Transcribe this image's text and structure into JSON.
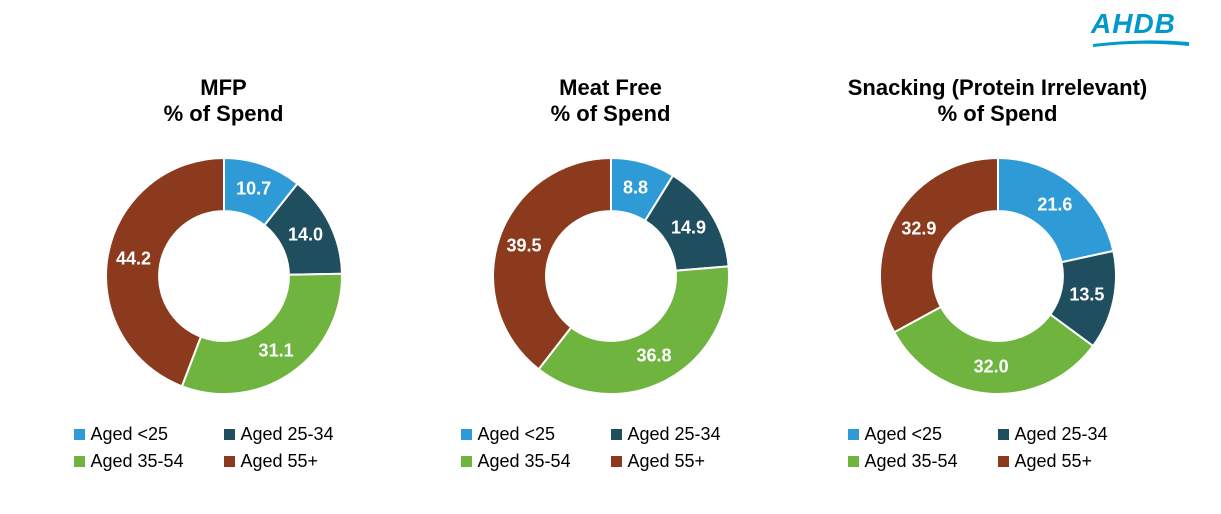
{
  "logo": {
    "text": "AHDB",
    "color": "#0099cc"
  },
  "categories": [
    {
      "key": "lt25",
      "label": "Aged <25",
      "color": "#2e9bd6"
    },
    {
      "key": "25_34",
      "label": "Aged 25-34",
      "color": "#1f4e5f"
    },
    {
      "key": "35_54",
      "label": "Aged 35-54",
      "color": "#6eb43f"
    },
    {
      "key": "55p",
      "label": "Aged 55+",
      "color": "#8b3a1e"
    }
  ],
  "charts": [
    {
      "id": "mfp",
      "title": "MFP\n% of Spend",
      "type": "donut",
      "donut_inner_ratio": 0.55,
      "background_color": "#ffffff",
      "label_color": "#ffffff",
      "label_fontsize": 18,
      "title_fontsize": 22,
      "slices": [
        {
          "cat": "lt25",
          "value": 10.7
        },
        {
          "cat": "25_34",
          "value": 14.0
        },
        {
          "cat": "35_54",
          "value": 31.1
        },
        {
          "cat": "55p",
          "value": 44.2
        }
      ]
    },
    {
      "id": "meatfree",
      "title": "Meat Free\n% of Spend",
      "type": "donut",
      "donut_inner_ratio": 0.55,
      "background_color": "#ffffff",
      "label_color": "#ffffff",
      "label_fontsize": 18,
      "title_fontsize": 22,
      "slices": [
        {
          "cat": "lt25",
          "value": 8.8
        },
        {
          "cat": "25_34",
          "value": 14.9
        },
        {
          "cat": "35_54",
          "value": 36.8
        },
        {
          "cat": "55p",
          "value": 39.5
        }
      ]
    },
    {
      "id": "snacking",
      "title": "Snacking (Protein Irrelevant)\n% of Spend",
      "type": "donut",
      "donut_inner_ratio": 0.55,
      "background_color": "#ffffff",
      "label_color": "#ffffff",
      "label_fontsize": 18,
      "title_fontsize": 22,
      "slices": [
        {
          "cat": "lt25",
          "value": 21.6
        },
        {
          "cat": "25_34",
          "value": 13.5
        },
        {
          "cat": "35_54",
          "value": 32.0
        },
        {
          "cat": "55p",
          "value": 32.9
        }
      ]
    }
  ]
}
